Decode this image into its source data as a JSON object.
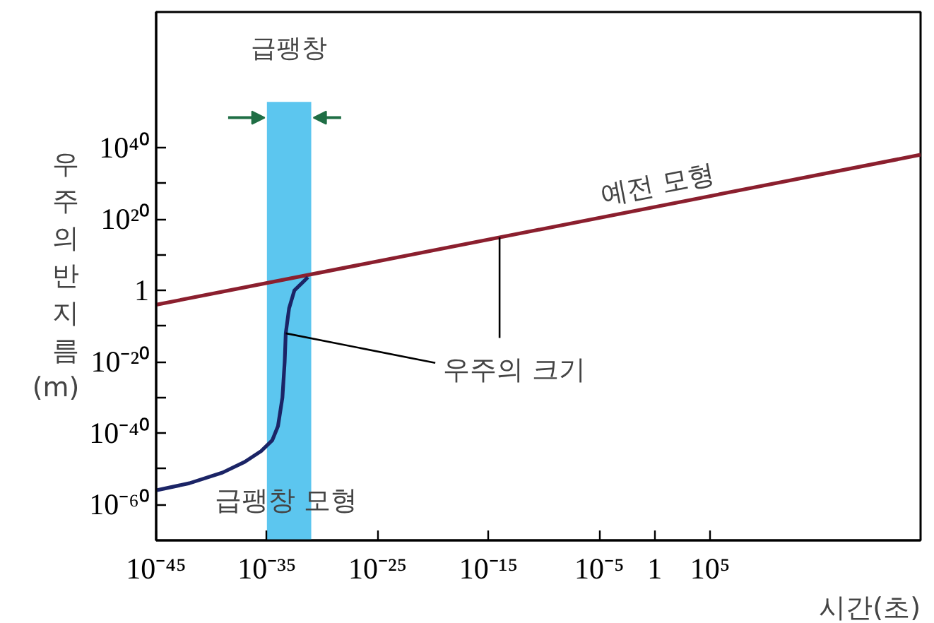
{
  "chart_data": {
    "type": "line",
    "xlabel": "시간(초)",
    "ylabel": "우주의 반지름 (m)",
    "log": "xy",
    "xlim": [
      1e-45,
      1e+24
    ],
    "ylim": [
      1e-70,
      1e+78
    ],
    "xticks": [
      {
        "value": 1e-45,
        "label": "10⁻⁴⁵"
      },
      {
        "value": 1e-35,
        "label": "10⁻³⁵"
      },
      {
        "value": 1e-25,
        "label": "10⁻²⁵"
      },
      {
        "value": 1e-15,
        "label": "10⁻¹⁵"
      },
      {
        "value": 1e-05,
        "label": "10⁻⁵"
      },
      1,
      {
        "value": 100000.0,
        "label": "10⁵"
      }
    ],
    "yticks": [
      {
        "value": 1e-60,
        "label": "10⁻⁶⁰"
      },
      {
        "value": 1e-50,
        "label": null
      },
      {
        "value": 1e-40,
        "label": "10⁻⁴⁰"
      },
      {
        "value": 1e-30,
        "label": null
      },
      {
        "value": 1e-20,
        "label": "10⁻²⁰"
      },
      {
        "value": 1e-10,
        "label": null
      },
      1,
      {
        "value": 10000000000.0,
        "label": null
      },
      {
        "value": 1e+20,
        "label": "10²⁰"
      },
      {
        "value": 1e+30,
        "label": null
      },
      {
        "value": 1e+40,
        "label": "10⁴⁰"
      }
    ],
    "series": [
      {
        "name": "예전 모형",
        "color": "#8b1f2e",
        "x": [
          1e-45,
          1e+24
        ],
        "values": [
          0.0001,
          1e+38
        ]
      },
      {
        "name": "급팽창 모형",
        "color": "#1b2466",
        "x": [
          1e-45,
          1e-42,
          1e-39,
          1e-37,
          3e-36,
          3e-35,
          1e-34,
          2.5e-34,
          4e-34,
          5e-34,
          1e-33,
          3e-33,
          2e-32,
          5e-32
        ],
        "values": [
          1e-56,
          1e-54,
          1e-51,
          1e-48,
          1e-45,
          1e-42,
          1e-38,
          1e-30,
          1e-20,
          1e-12,
          1e-05,
          1,
          300.0,
          5000.0
        ]
      }
    ],
    "bands": [
      {
        "axis": "x",
        "from": 1e-35,
        "to": 1e-31,
        "label": "급팽창",
        "color": "#5cc6ef"
      }
    ],
    "annotations": [
      {
        "text": "우주의 크기",
        "x": 5e-34,
        "y": 1e-12
      }
    ]
  }
}
